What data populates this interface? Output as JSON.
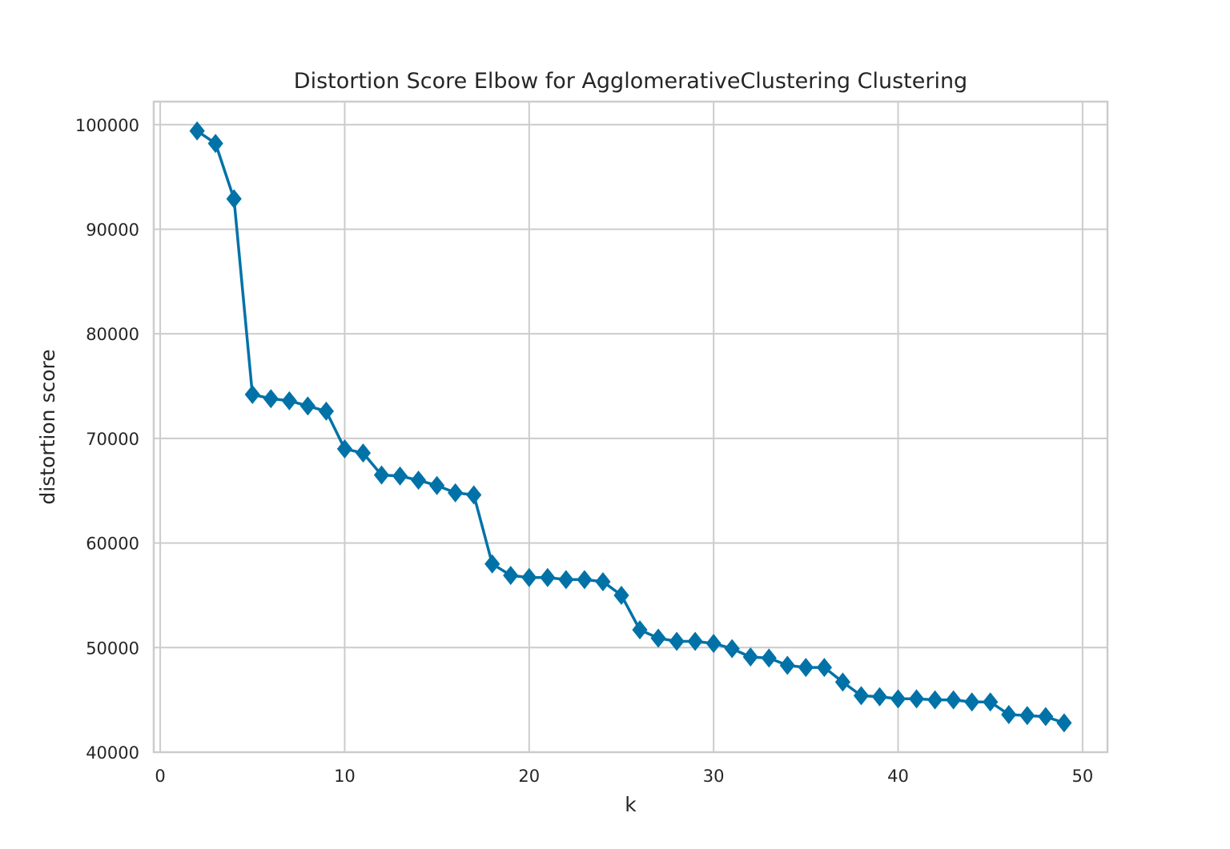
{
  "chart_data": {
    "type": "line",
    "title": "Distortion Score Elbow for AgglomerativeClustering Clustering",
    "xlabel": "k",
    "ylabel": "distortion score",
    "xlim": [
      -0.35,
      51.35
    ],
    "ylim": [
      40000,
      102200
    ],
    "x_ticks": [
      0,
      10,
      20,
      30,
      40,
      50
    ],
    "y_ticks": [
      40000,
      50000,
      60000,
      70000,
      80000,
      90000,
      100000
    ],
    "grid": true,
    "legend": "none",
    "marker": "diamond",
    "color": "#0072a7",
    "series": [
      {
        "x": [
          2,
          3,
          4,
          5,
          6,
          7,
          8,
          9,
          10,
          11,
          12,
          13,
          14,
          15,
          16,
          17,
          18,
          19,
          20,
          21,
          22,
          23,
          24,
          25,
          26,
          27,
          28,
          29,
          30,
          31,
          32,
          33,
          34,
          35,
          36,
          37,
          38,
          39,
          40,
          41,
          42,
          43,
          44,
          45,
          46,
          47,
          48,
          49
        ],
        "values": [
          99400,
          98200,
          92900,
          74200,
          73800,
          73600,
          73100,
          72600,
          69000,
          68600,
          66500,
          66400,
          66000,
          65500,
          64800,
          64600,
          58000,
          56900,
          56700,
          56700,
          56500,
          56500,
          56300,
          55000,
          51700,
          50900,
          50600,
          50600,
          50400,
          49900,
          49100,
          49000,
          48300,
          48100,
          48100,
          46700,
          45400,
          45300,
          45100,
          45100,
          45000,
          45000,
          44800,
          44800,
          43600,
          43500,
          43400,
          42800
        ]
      }
    ]
  }
}
